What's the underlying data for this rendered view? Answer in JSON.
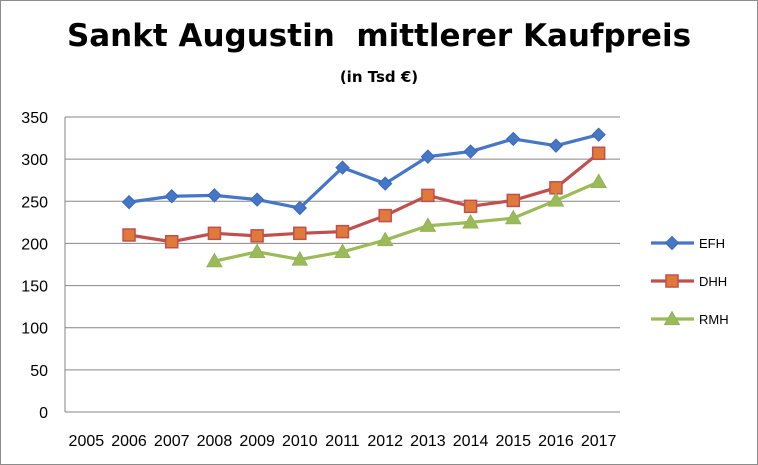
{
  "chart_data": {
    "type": "line",
    "title": "Sankt Augustin  mittlerer Kaufpreis",
    "subtitle": "(in Tsd €)",
    "x": [
      "2005",
      "2006",
      "2007",
      "2008",
      "2009",
      "2010",
      "2011",
      "2012",
      "2013",
      "2014",
      "2015",
      "2016",
      "2017"
    ],
    "ylim": [
      0,
      350
    ],
    "yticks": [
      0,
      50,
      100,
      150,
      200,
      250,
      300,
      350
    ],
    "grid": true,
    "legend_position": "right",
    "series": [
      {
        "name": "EFH",
        "color": "#4677c7",
        "marker": "diamond",
        "values": [
          null,
          249,
          256,
          257,
          252,
          242,
          290,
          271,
          303,
          309,
          324,
          316,
          329
        ]
      },
      {
        "name": "DHH",
        "color": "#c0504d",
        "marker": "square",
        "values": [
          null,
          210,
          202,
          212,
          209,
          212,
          214,
          233,
          257,
          244,
          251,
          266,
          307
        ]
      },
      {
        "name": "RMH",
        "color": "#9bbb59",
        "marker": "triangle",
        "values": [
          null,
          null,
          null,
          179,
          190,
          181,
          190,
          204,
          221,
          225,
          230,
          251,
          273
        ]
      }
    ]
  }
}
